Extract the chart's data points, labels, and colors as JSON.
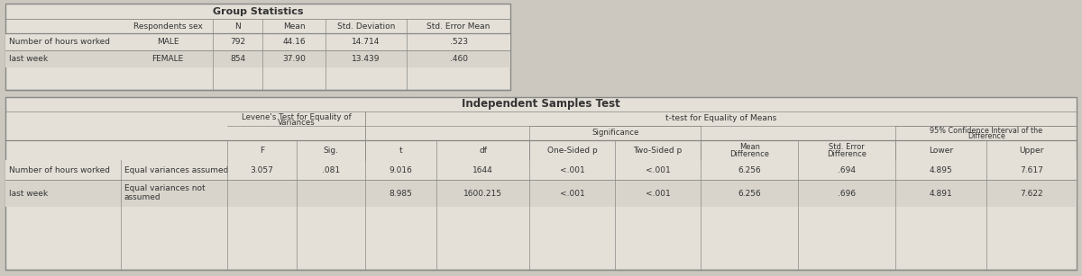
{
  "bg_color": "#ccc8c0",
  "table_bg": "#e4e0d8",
  "table_bg_alt": "#d8d4cc",
  "border_color": "#888884",
  "text_color": "#333333",
  "group_stats": {
    "title": "Group Statistics",
    "col_headers": [
      "Respondents sex",
      "N",
      "Mean",
      "Std. Deviation",
      "Std. Error Mean"
    ],
    "row_label_line1": "Number of hours worked",
    "row_label_line2": "last week",
    "rows": [
      [
        "MALE",
        "792",
        "44.16",
        "14.714",
        ".523"
      ],
      [
        "FEMALE",
        "854",
        "37.90",
        "13.439",
        ".460"
      ]
    ]
  },
  "ind_samples": {
    "title": "Independent Samples Test",
    "levene_line1": "Levene's Test for Equality of",
    "levene_line2": "Variances",
    "ttest_header": "t-test for Equality of Means",
    "sig_header": "Significance",
    "ci_line1": "95% Confidence Interval of the",
    "ci_line2": "Difference",
    "col_headers_row3": [
      "F",
      "Sig.",
      "t",
      "df",
      "One-Sided p",
      "Two-Sided p",
      "Mean\nDifference",
      "Std. Error\nDifference",
      "Lower",
      "Upper"
    ],
    "row_label_line1": "Number of hours worked",
    "row_label_line2": "last week",
    "rows": [
      [
        "Equal variances assumed",
        "3.057",
        ".081",
        "9.016",
        "1644",
        "<.001",
        "<.001",
        "6.256",
        ".694",
        "4.895",
        "7.617"
      ],
      [
        "Equal variances not\nassumed",
        "",
        "",
        "8.985",
        "1600.215",
        "<.001",
        "<.001",
        "6.256",
        ".696",
        "4.891",
        "7.622"
      ]
    ]
  }
}
